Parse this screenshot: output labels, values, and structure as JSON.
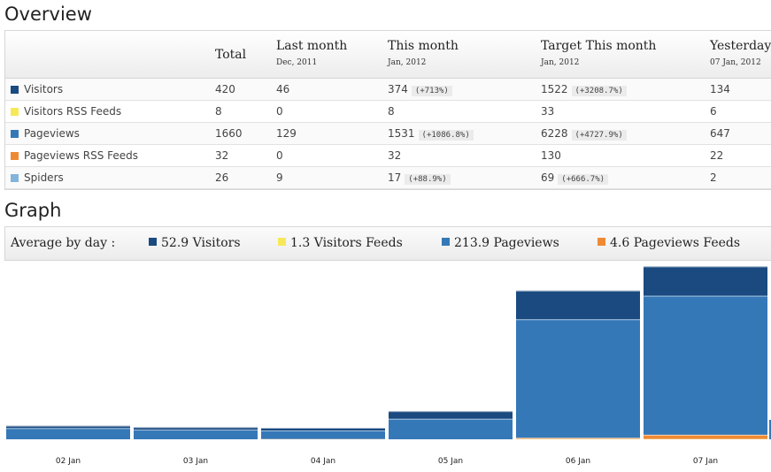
{
  "overview": {
    "title": "Overview",
    "columns": [
      {
        "label": "Total",
        "sub": ""
      },
      {
        "label": "Last month",
        "sub": "Dec, 2011"
      },
      {
        "label": "This month",
        "sub": "Jan, 2012"
      },
      {
        "label": "Target This month",
        "sub": "Jan, 2012"
      },
      {
        "label": "Yesterday",
        "sub": "07 Jan, 2012"
      }
    ],
    "rows": [
      {
        "label": "Visitors",
        "color": "#1a4a80",
        "total": "420",
        "last_month": "46",
        "this_month": "374",
        "this_month_pct": "(+713%)",
        "target": "1522",
        "target_pct": "(+3208.7%)",
        "yesterday": "134"
      },
      {
        "label": "Visitors RSS Feeds",
        "color": "#f7e85a",
        "total": "8",
        "last_month": "0",
        "this_month": "8",
        "this_month_pct": "",
        "target": "33",
        "target_pct": "",
        "yesterday": "6"
      },
      {
        "label": "Pageviews",
        "color": "#3578b8",
        "total": "1660",
        "last_month": "129",
        "this_month": "1531",
        "this_month_pct": "(+1086.8%)",
        "target": "6228",
        "target_pct": "(+4727.9%)",
        "yesterday": "647"
      },
      {
        "label": "Pageviews RSS Feeds",
        "color": "#ef8a34",
        "total": "32",
        "last_month": "0",
        "this_month": "32",
        "this_month_pct": "",
        "target": "130",
        "target_pct": "",
        "yesterday": "22"
      },
      {
        "label": "Spiders",
        "color": "#84b4da",
        "total": "26",
        "last_month": "9",
        "this_month": "17",
        "this_month_pct": "(+88.9%)",
        "target": "69",
        "target_pct": "(+666.7%)",
        "yesterday": "2"
      }
    ]
  },
  "graph": {
    "title": "Graph",
    "average_label": "Average by day :",
    "legend": [
      {
        "text": "52.9 Visitors",
        "color": "#1a4a80"
      },
      {
        "text": "1.3 Visitors Feeds",
        "color": "#f7e85a"
      },
      {
        "text": "213.9 Pageviews",
        "color": "#3578b8"
      },
      {
        "text": "4.6 Pageviews Feeds",
        "color": "#ef8a34"
      }
    ]
  },
  "chart_data": {
    "type": "bar",
    "stacked": true,
    "categories": [
      "02 Jan",
      "03 Jan",
      "04 Jan",
      "05 Jan",
      "06 Jan",
      "07 Jan"
    ],
    "series": [
      {
        "name": "Visitors Feeds",
        "color": "#f7e85a",
        "values": [
          0,
          0,
          0,
          0,
          1,
          1
        ]
      },
      {
        "name": "Pageviews Feeds",
        "color": "#ef8a34",
        "values": [
          0,
          0,
          1,
          0,
          4,
          14
        ]
      },
      {
        "name": "Pageviews",
        "color": "#3578b8",
        "values": [
          37,
          32,
          28,
          68,
          392,
          460
        ]
      },
      {
        "name": "Visitors",
        "color": "#1a4a80",
        "values": [
          8,
          8,
          9,
          25,
          95,
          97
        ]
      }
    ],
    "grid": false
  }
}
